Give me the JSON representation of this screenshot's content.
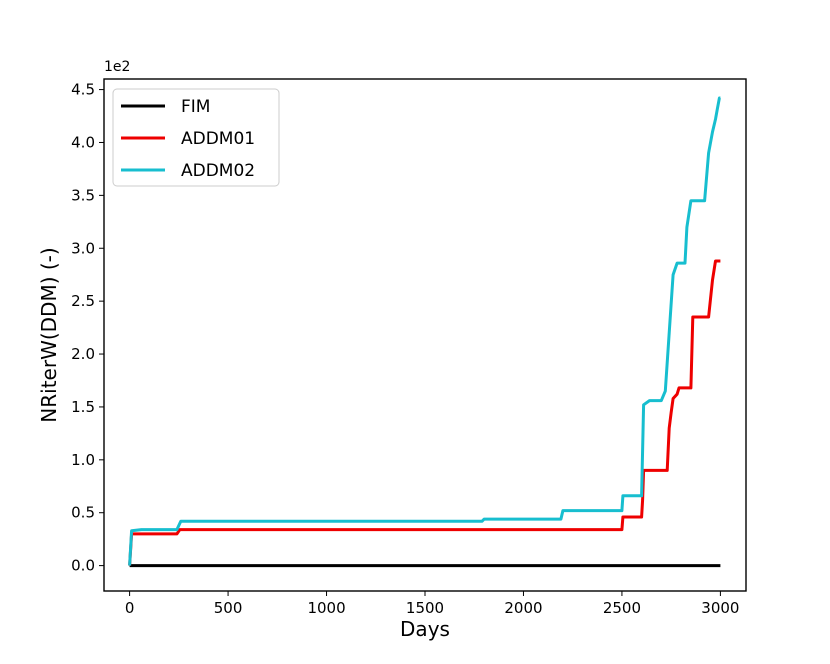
{
  "chart_data": {
    "type": "line",
    "title": "",
    "xlabel": "Days",
    "ylabel": "NRiterW(DDM)  (-)",
    "y_scale_label": "1e2",
    "xlim": [
      -130,
      3130
    ],
    "ylim": [
      -0.24,
      4.6
    ],
    "x_ticks": [
      0,
      500,
      1000,
      1500,
      2000,
      2500,
      3000
    ],
    "y_ticks": [
      0.0,
      0.5,
      1.0,
      1.5,
      2.0,
      2.5,
      3.0,
      3.5,
      4.0,
      4.5
    ],
    "x_tick_labels": [
      "0",
      "500",
      "1000",
      "1500",
      "2000",
      "2500",
      "3000"
    ],
    "y_tick_labels": [
      "0.0",
      "0.5",
      "1.0",
      "1.5",
      "2.0",
      "2.5",
      "3.0",
      "3.5",
      "4.0",
      "4.5"
    ],
    "grid": false,
    "legend_position": "top-left",
    "series": [
      {
        "name": "FIM",
        "color": "#000000",
        "points": [
          [
            0,
            0.0
          ],
          [
            3000,
            0.0
          ]
        ]
      },
      {
        "name": "ADDM01",
        "color": "#ee0000",
        "points": [
          [
            0,
            0.0
          ],
          [
            10,
            0.3
          ],
          [
            240,
            0.3
          ],
          [
            255,
            0.34
          ],
          [
            2500,
            0.34
          ],
          [
            2505,
            0.46
          ],
          [
            2600,
            0.46
          ],
          [
            2605,
            0.62
          ],
          [
            2610,
            0.9
          ],
          [
            2730,
            0.9
          ],
          [
            2740,
            1.3
          ],
          [
            2750,
            1.45
          ],
          [
            2760,
            1.58
          ],
          [
            2780,
            1.62
          ],
          [
            2790,
            1.68
          ],
          [
            2850,
            1.68
          ],
          [
            2860,
            2.35
          ],
          [
            2940,
            2.35
          ],
          [
            2960,
            2.7
          ],
          [
            2975,
            2.88
          ],
          [
            3000,
            2.88
          ]
        ]
      },
      {
        "name": "ADDM02",
        "color": "#17becf",
        "points": [
          [
            0,
            0.0
          ],
          [
            10,
            0.33
          ],
          [
            60,
            0.34
          ],
          [
            240,
            0.34
          ],
          [
            260,
            0.42
          ],
          [
            1790,
            0.42
          ],
          [
            1800,
            0.44
          ],
          [
            2190,
            0.44
          ],
          [
            2200,
            0.52
          ],
          [
            2500,
            0.52
          ],
          [
            2505,
            0.66
          ],
          [
            2600,
            0.66
          ],
          [
            2610,
            1.52
          ],
          [
            2640,
            1.56
          ],
          [
            2700,
            1.56
          ],
          [
            2720,
            1.65
          ],
          [
            2740,
            2.2
          ],
          [
            2760,
            2.75
          ],
          [
            2780,
            2.86
          ],
          [
            2820,
            2.86
          ],
          [
            2830,
            3.2
          ],
          [
            2850,
            3.45
          ],
          [
            2920,
            3.45
          ],
          [
            2940,
            3.9
          ],
          [
            2960,
            4.1
          ],
          [
            2975,
            4.22
          ],
          [
            2985,
            4.32
          ],
          [
            2995,
            4.42
          ],
          [
            3000,
            4.42
          ]
        ]
      }
    ]
  }
}
